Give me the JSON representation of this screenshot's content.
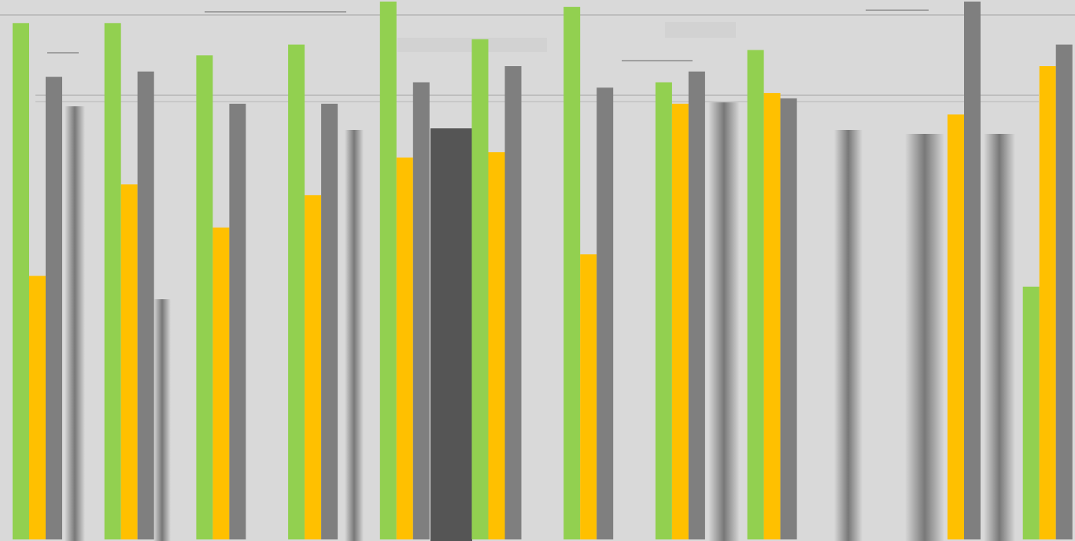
{
  "chart_data": {
    "type": "bar",
    "title": "",
    "xlabel": "",
    "ylabel": "",
    "ylim": [
      0,
      100
    ],
    "grid": false,
    "legend": "none",
    "categories": [
      "",
      "",
      "",
      "",
      "",
      "",
      "",
      "",
      "",
      "",
      "",
      ""
    ],
    "series": [
      {
        "color": "#92d050",
        "values": [
          96,
          96,
          90,
          92,
          100,
          93,
          99,
          85,
          91,
          0,
          0,
          47
        ]
      },
      {
        "color": "#ffc000",
        "values": [
          49,
          66,
          58,
          64,
          71,
          72,
          53,
          81,
          83,
          0,
          79,
          88
        ]
      },
      {
        "color": "#7f7f7f",
        "values": [
          86,
          87,
          81,
          81,
          85,
          88,
          84,
          87,
          82,
          0,
          100,
          92
        ]
      }
    ]
  }
}
